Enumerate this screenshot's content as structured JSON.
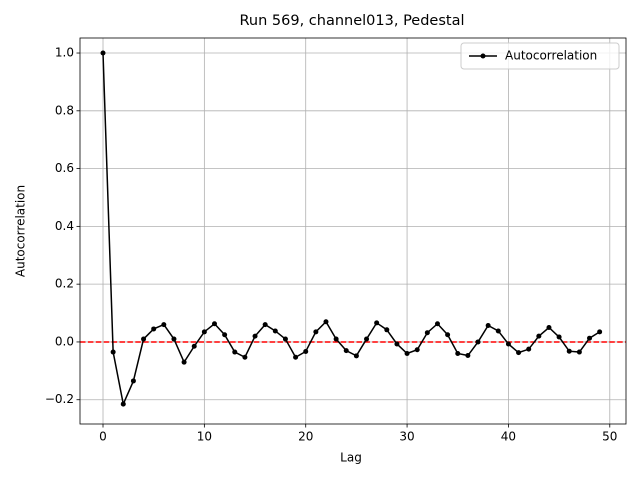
{
  "chart_data": {
    "type": "line",
    "title": "Run 569, channel013, Pedestal",
    "xlabel": "Lag",
    "ylabel": "Autocorrelation",
    "x": [
      0,
      1,
      2,
      3,
      4,
      5,
      6,
      7,
      8,
      9,
      10,
      11,
      12,
      13,
      14,
      15,
      16,
      17,
      18,
      19,
      20,
      21,
      22,
      23,
      24,
      25,
      26,
      27,
      28,
      29,
      30,
      31,
      32,
      33,
      34,
      35,
      36,
      37,
      38,
      39,
      40,
      41,
      42,
      43,
      44,
      45,
      46,
      47,
      48,
      49
    ],
    "series": [
      {
        "name": "Autocorrelation",
        "color": "#000000",
        "values": [
          1.0,
          -0.035,
          -0.215,
          -0.135,
          0.01,
          0.045,
          0.06,
          0.01,
          -0.07,
          -0.015,
          0.035,
          0.063,
          0.025,
          -0.035,
          -0.053,
          0.02,
          0.06,
          0.038,
          0.01,
          -0.053,
          -0.033,
          0.035,
          0.07,
          0.01,
          -0.03,
          -0.048,
          0.01,
          0.066,
          0.042,
          -0.007,
          -0.04,
          -0.027,
          0.032,
          0.063,
          0.025,
          -0.04,
          -0.047,
          0.0,
          0.057,
          0.038,
          -0.007,
          -0.037,
          -0.025,
          0.02,
          0.05,
          0.017,
          -0.032,
          -0.035,
          0.013,
          0.035
        ]
      }
    ],
    "hline": {
      "value": 0,
      "color": "#ff0000"
    },
    "xlim": [
      -2.27,
      51.6
    ],
    "ylim": [
      -0.284,
      1.052
    ],
    "xticks": [
      0,
      10,
      20,
      30,
      40,
      50
    ],
    "yticks": [
      {
        "value": -0.2,
        "label": "−0.2"
      },
      {
        "value": 0,
        "label": "0.0"
      },
      {
        "value": 0.2,
        "label": "0.2"
      },
      {
        "value": 0.4,
        "label": "0.4"
      },
      {
        "value": 0.6,
        "label": "0.6"
      },
      {
        "value": 0.8,
        "label": "0.8"
      },
      {
        "value": 1.0,
        "label": "1.0"
      }
    ],
    "grid": true,
    "legend": "upper right"
  }
}
